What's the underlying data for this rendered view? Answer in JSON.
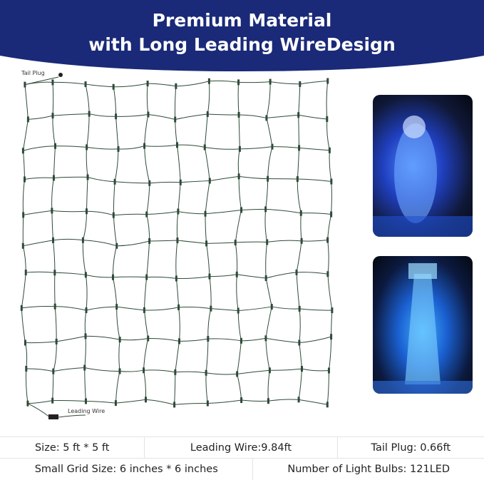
{
  "header": {
    "title_line1": "Premium Material",
    "title_line2": "with Long Leading WireDesign",
    "bg_color": "#1a2a78"
  },
  "net": {
    "tail_plug_label": "Tail Plug",
    "leading_wire_label": "Leading Wire",
    "wire_color": "#2e4a38"
  },
  "photos": [
    {
      "subject": "santa-claus-light-sculpture",
      "light_color": "#2f6bff"
    },
    {
      "subject": "lighthouse-light-sculpture",
      "light_color": "#3fa0ff"
    }
  ],
  "specs": {
    "row1": [
      "Size: 5 ft * 5 ft",
      "Leading Wire:9.84ft",
      "Tail Plug: 0.66ft"
    ],
    "row2": [
      "Small Grid Size: 6 inches * 6 inches",
      "Number of Light Bulbs: 121LED"
    ]
  }
}
